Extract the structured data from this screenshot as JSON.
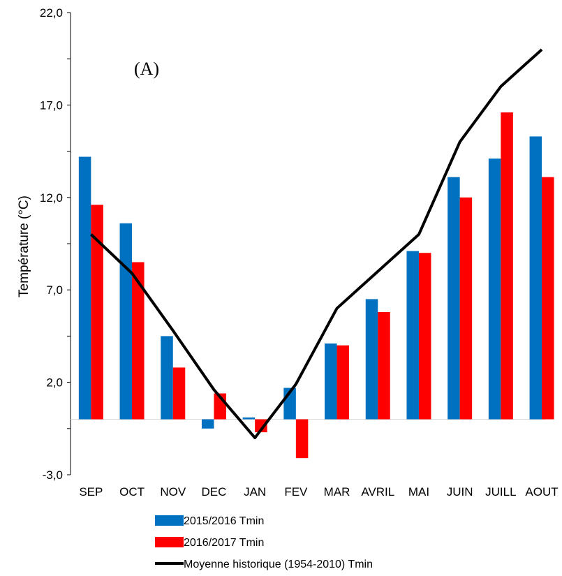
{
  "chart_data": {
    "type": "bar",
    "panel_label": "(A)",
    "ylabel": "Température (°C)",
    "ylim": [
      -3,
      22
    ],
    "yticks": [
      "-3,0",
      "2,0",
      "7,0",
      "12,0",
      "17,0",
      "22,0"
    ],
    "categories": [
      "SEP",
      "OCT",
      "NOV",
      "DEC",
      "JAN",
      "FEV",
      "MAR",
      "AVRIL",
      "MAI",
      "JUIN",
      "JUILL",
      "AOUT"
    ],
    "series": [
      {
        "name": "2015/2016 Tmin",
        "type": "bar",
        "color": "#0070C0",
        "values": [
          14.2,
          10.6,
          4.5,
          -0.5,
          0.1,
          1.7,
          4.1,
          6.5,
          9.1,
          13.1,
          14.1,
          15.3
        ]
      },
      {
        "name": "2016/2017 Tmin",
        "type": "bar",
        "color": "#FF0000",
        "values": [
          11.6,
          8.5,
          2.8,
          1.4,
          -0.7,
          -2.1,
          4.0,
          5.8,
          9.0,
          12.0,
          16.6,
          13.1
        ]
      },
      {
        "name": "Moyenne historique (1954-2010) Tmin",
        "type": "line",
        "color": "#000000",
        "values": [
          10.0,
          7.9,
          4.8,
          1.6,
          -1.0,
          1.9,
          6.0,
          8.0,
          10.0,
          15.0,
          18.0,
          20.0
        ]
      }
    ],
    "grid": false,
    "legend_position": "bottom"
  }
}
